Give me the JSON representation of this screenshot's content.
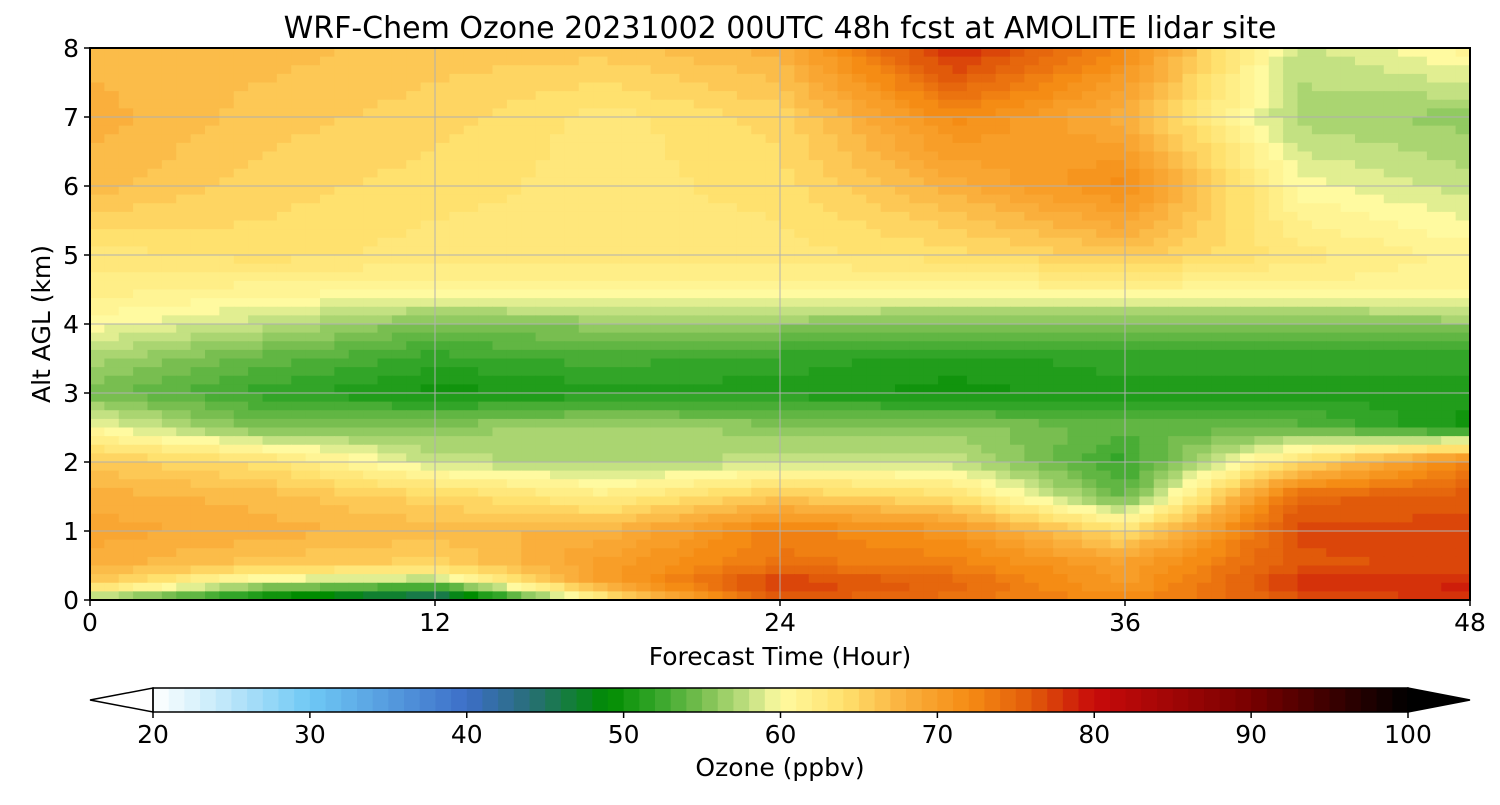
{
  "chart_data": {
    "type": "heatmap",
    "title": "WRF-Chem Ozone  20231002 00UTC 48h fcst at AMOLITE lidar site",
    "xlabel": "Forecast Time (Hour)",
    "ylabel": "Alt AGL (km)",
    "xlim": [
      0,
      48
    ],
    "ylim": [
      0,
      8
    ],
    "xticks": [
      "0",
      "12",
      "24",
      "36",
      "48"
    ],
    "yticks": [
      "0",
      "1",
      "2",
      "3",
      "4",
      "5",
      "6",
      "7",
      "8"
    ],
    "grid": true,
    "colorbar": {
      "label": "Ozone  (ppbv)",
      "ticks": [
        "20",
        "30",
        "40",
        "50",
        "60",
        "70",
        "80",
        "90",
        "100"
      ],
      "range": [
        20,
        100
      ],
      "extend": "both",
      "orientation": "horizontal"
    },
    "x": [
      0,
      6,
      12,
      18,
      24,
      30,
      36,
      42,
      48
    ],
    "y": [
      0,
      0.25,
      0.5,
      1,
      1.5,
      2,
      2.5,
      3,
      3.5,
      4,
      4.5,
      5,
      6,
      7,
      8
    ],
    "z": [
      [
        56,
        48,
        42,
        62,
        76,
        74,
        72,
        76,
        78
      ],
      [
        66,
        58,
        56,
        70,
        78,
        75,
        70,
        78,
        79
      ],
      [
        68,
        66,
        65,
        70,
        74,
        73,
        70,
        76,
        77
      ],
      [
        69,
        68,
        67,
        68,
        73,
        71,
        64,
        77,
        77
      ],
      [
        68,
        67,
        65,
        62,
        66,
        64,
        54,
        75,
        76
      ],
      [
        66,
        64,
        58,
        57,
        58,
        58,
        52,
        64,
        73
      ],
      [
        60,
        55,
        56,
        57,
        56,
        56,
        54,
        54,
        50
      ],
      [
        55,
        52,
        50,
        51,
        51,
        50,
        51,
        51,
        51
      ],
      [
        57,
        54,
        52,
        53,
        52,
        51,
        52,
        52,
        52
      ],
      [
        60,
        58,
        55,
        56,
        56,
        55,
        55,
        55,
        56
      ],
      [
        62,
        61,
        61,
        61,
        61,
        61,
        61,
        61,
        61
      ],
      [
        63,
        64,
        63,
        63,
        63,
        64,
        66,
        63,
        61
      ],
      [
        67,
        65,
        64,
        63,
        64,
        68,
        72,
        60,
        58
      ],
      [
        68,
        66,
        65,
        63,
        65,
        72,
        68,
        57,
        56
      ],
      [
        67,
        67,
        66,
        66,
        68,
        79,
        72,
        58,
        61
      ]
    ]
  }
}
